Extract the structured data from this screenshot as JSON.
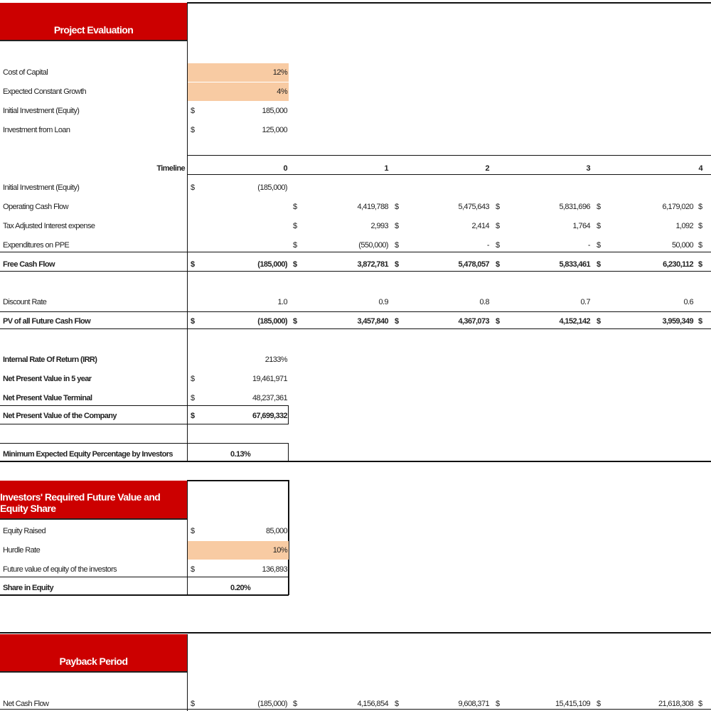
{
  "header": {
    "title": "Project Evaluation"
  },
  "inputs": [
    {
      "label": "Cost of Capital",
      "currency": null,
      "value": "12%",
      "highlight": true
    },
    {
      "label": "Expected Constant Growth",
      "currency": null,
      "value": "4%",
      "highlight": true
    },
    {
      "label": "Initial Investment (Equity)",
      "currency": "$",
      "value": "185,000",
      "highlight": false
    },
    {
      "label": "Investment from Loan",
      "currency": "$",
      "value": "125,000",
      "highlight": false
    }
  ],
  "timeline": {
    "label": "Timeline",
    "periods": [
      "0",
      "1",
      "2",
      "3",
      "4"
    ],
    "rows": [
      {
        "label": "Initial Investment (Equity)",
        "bold": false,
        "currency": [
          "$",
          null,
          null,
          null,
          null,
          null
        ],
        "values": [
          "(185,000)",
          null,
          null,
          null,
          null
        ]
      },
      {
        "label": "Operating Cash Flow",
        "bold": false,
        "currency": [
          null,
          "$",
          "$",
          "$",
          "$",
          "$"
        ],
        "values": [
          null,
          "4,419,788",
          "5,475,643",
          "5,831,696",
          "6,179,020"
        ]
      },
      {
        "label": "Tax Adjusted Interest expense",
        "bold": false,
        "currency": [
          null,
          "$",
          "$",
          "$",
          "$",
          "$"
        ],
        "values": [
          null,
          "2,993",
          "2,414",
          "1,764",
          "1,092"
        ]
      },
      {
        "label": "Expenditures on PPE",
        "bold": false,
        "currency": [
          null,
          "$",
          "$",
          "$",
          "$",
          "$"
        ],
        "values": [
          null,
          "(550,000)",
          "-",
          "-",
          "50,000"
        ]
      },
      {
        "label": "Free Cash Flow",
        "bold": true,
        "currency": [
          "$",
          "$",
          "$",
          "$",
          "$",
          "$"
        ],
        "values": [
          "(185,000)",
          "3,872,781",
          "5,478,057",
          "5,833,461",
          "6,230,112"
        ]
      },
      {
        "label": "Discount Rate",
        "bold": false,
        "currency": [
          null,
          null,
          null,
          null,
          null,
          null
        ],
        "values": [
          "1.0",
          "0.9",
          "0.8",
          "0.7",
          "0.6"
        ]
      },
      {
        "label": "PV of all Future Cash Flow",
        "bold": true,
        "currency": [
          "$",
          "$",
          "$",
          "$",
          "$",
          "$"
        ],
        "values": [
          "(185,000)",
          "3,457,840",
          "4,367,073",
          "4,152,142",
          "3,959,349"
        ]
      }
    ]
  },
  "summary": [
    {
      "label": "Internal Rate Of Return (IRR)",
      "currency": null,
      "value": "2133%"
    },
    {
      "label": "Net Present Value in 5 year",
      "currency": "$",
      "value": "19,461,971"
    },
    {
      "label": "Net Present Value Terminal",
      "currency": "$",
      "value": "48,237,361"
    },
    {
      "label": "Net Present Value of the Company",
      "currency": "$",
      "value": "67,699,332"
    }
  ],
  "min_equity": {
    "label": "Minimum Expected Equity Percentage by Investors",
    "value": "0.13%"
  },
  "investors": {
    "title": "Investors' Required Future Value and Equity Share",
    "rows": [
      {
        "label": "Equity Raised",
        "currency": "$",
        "value": "85,000",
        "highlight": false
      },
      {
        "label": "Hurdle Rate",
        "currency": null,
        "value": "10%",
        "highlight": true
      },
      {
        "label": "Future value of equity of the investors",
        "currency": "$",
        "value": "136,893",
        "highlight": false
      }
    ],
    "share": {
      "label": "Share in Equity",
      "value": "0.20%"
    }
  },
  "payback": {
    "title": "Payback Period",
    "rows": [
      {
        "label": "Net Cash Flow",
        "currency": [
          "$",
          "$",
          "$",
          "$",
          "$",
          "$"
        ],
        "values": [
          "(185,000)",
          "4,156,854",
          "9,608,371",
          "15,415,109",
          "21,618,308"
        ]
      }
    ]
  }
}
